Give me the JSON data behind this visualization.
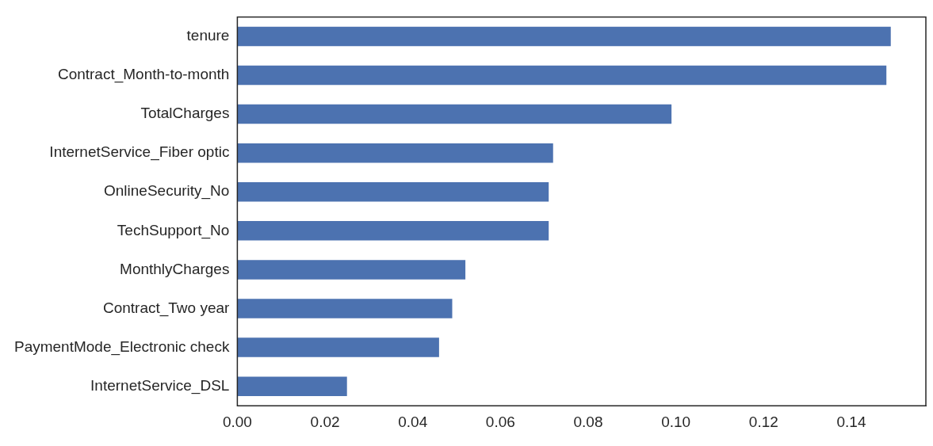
{
  "chart_data": {
    "type": "bar",
    "orientation": "horizontal",
    "categories": [
      "tenure",
      "Contract_Month-to-month",
      "TotalCharges",
      "InternetService_Fiber optic",
      "OnlineSecurity_No",
      "TechSupport_No",
      "MonthlyCharges",
      "Contract_Two year",
      "PaymentMode_Electronic check",
      "InternetService_DSL"
    ],
    "values": [
      0.149,
      0.148,
      0.099,
      0.072,
      0.071,
      0.071,
      0.052,
      0.049,
      0.046,
      0.025
    ],
    "color": "#4c72b0",
    "xlim": [
      0,
      0.157
    ],
    "xticks": [
      {
        "value": 0,
        "label": "0.00"
      },
      {
        "value": 0.02,
        "label": "0.02"
      },
      {
        "value": 0.04,
        "label": "0.04"
      },
      {
        "value": 0.06,
        "label": "0.06"
      },
      {
        "value": 0.08,
        "label": "0.08"
      },
      {
        "value": 0.1,
        "label": "0.10"
      },
      {
        "value": 0.12,
        "label": "0.12"
      },
      {
        "value": 0.14,
        "label": "0.14"
      }
    ],
    "grid": false,
    "legend": false
  }
}
